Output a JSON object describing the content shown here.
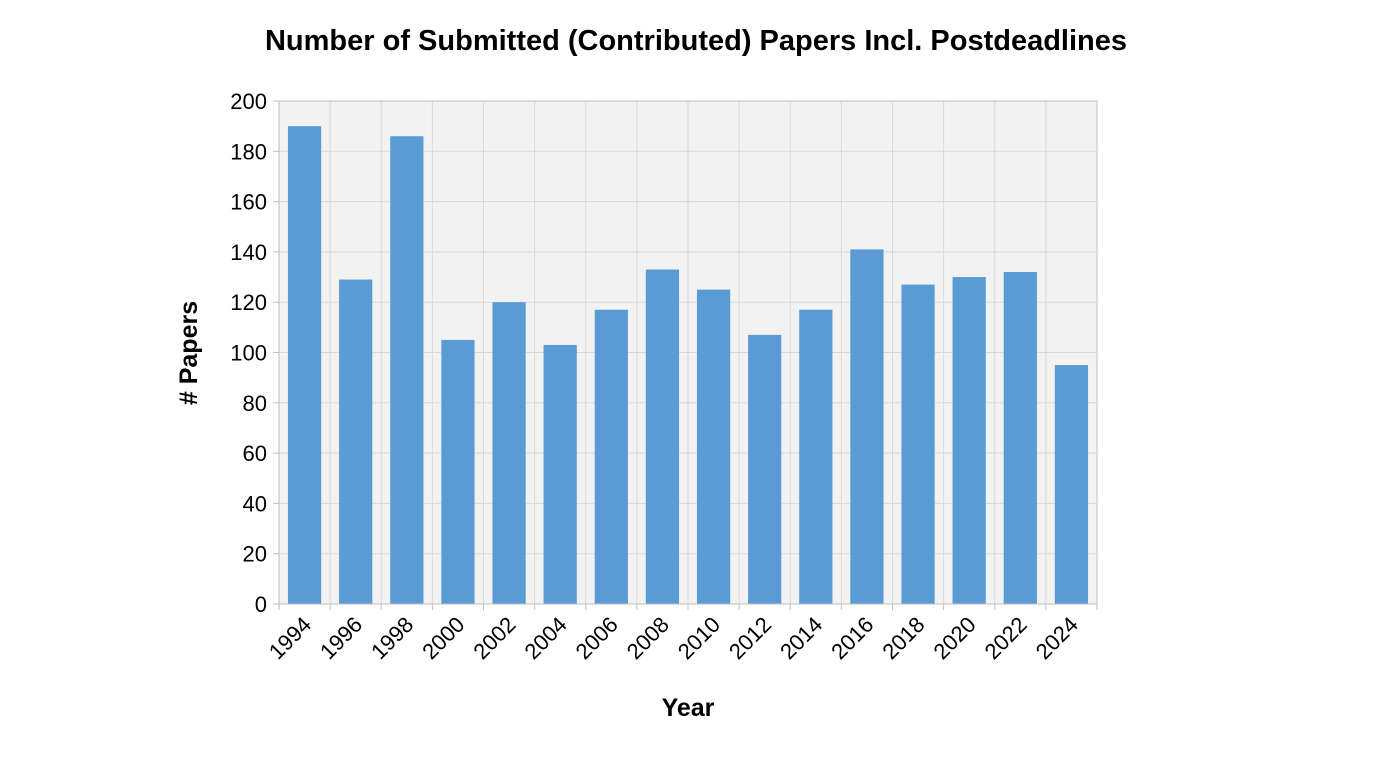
{
  "chart_data": {
    "type": "bar",
    "title": "Number of Submitted (Contributed) Papers Incl. Postdeadlines",
    "xlabel": "Year",
    "ylabel": "# Papers",
    "categories": [
      "1994",
      "1996",
      "1998",
      "2000",
      "2002",
      "2004",
      "2006",
      "2008",
      "2010",
      "2012",
      "2014",
      "2016",
      "2018",
      "2020",
      "2022",
      "2024"
    ],
    "values": [
      190,
      129,
      186,
      105,
      120,
      103,
      117,
      133,
      125,
      107,
      117,
      141,
      127,
      130,
      132,
      95
    ],
    "ylim": [
      0,
      200
    ],
    "yticks": [
      0,
      20,
      40,
      60,
      80,
      100,
      120,
      140,
      160,
      180,
      200
    ],
    "grid": true,
    "legend": "none",
    "colors": {
      "bar": "#5b9bd5",
      "plot_background": "#f2f2f2",
      "gridline": "#d9d9d9",
      "axis": "#bfbfbf"
    }
  }
}
